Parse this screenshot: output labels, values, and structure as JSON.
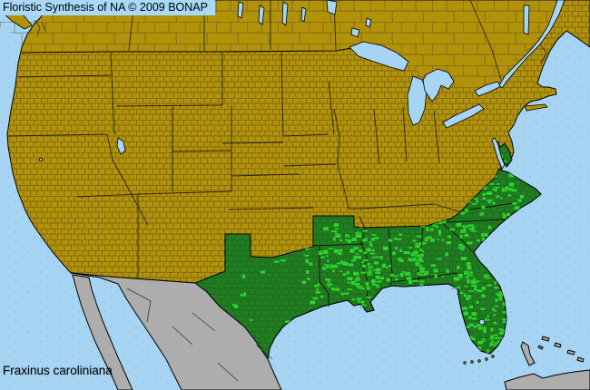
{
  "header": {
    "title": "Floristic Synthesis of NA © 2009 BONAP"
  },
  "map": {
    "species_label": "Fraxinus caroliniana",
    "region_shown": "North America",
    "colors": {
      "water": "#A6D4F2",
      "water_dot": "#8FC2E4",
      "land_absent": "#B29208",
      "state_present": "#1F7E1F",
      "county_present": "#2FD32F",
      "outside_na": "#ADADAD",
      "border": "#000000",
      "county_line": "#3A3A3A",
      "label_bg": "#A9D8F8",
      "text": "#000000"
    }
  }
}
